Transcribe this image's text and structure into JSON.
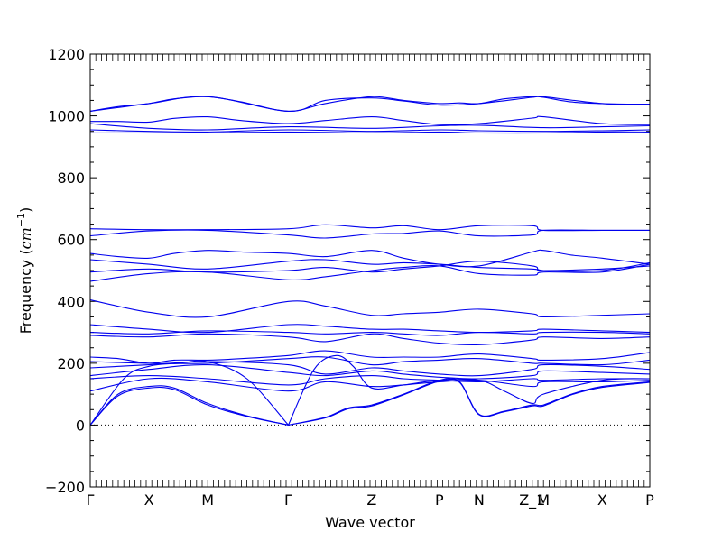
{
  "chart_data": {
    "type": "line",
    "title": "",
    "xlabel": "Wave vector",
    "ylabel_prefix": "Frequency (",
    "ylabel_math": "cm",
    "ylabel_exp": "−1",
    "ylabel_suffix": ")",
    "ylim": [
      -200,
      1200
    ],
    "yticks": [
      -200,
      0,
      200,
      400,
      600,
      800,
      1000,
      1200
    ],
    "ytick_labels": [
      "−200",
      "0",
      "200",
      "400",
      "600",
      "800",
      "1000",
      "1200"
    ],
    "x_points": [
      {
        "label": "Γ",
        "x": 0.0
      },
      {
        "label": "X",
        "x": 0.105
      },
      {
        "label": "M",
        "x": 0.21
      },
      {
        "label": "Γ",
        "x": 0.354
      },
      {
        "label": "Z",
        "x": 0.503
      },
      {
        "label": "P",
        "x": 0.624
      },
      {
        "label": "N",
        "x": 0.695
      },
      {
        "label": "Z_1",
        "x": 0.79
      },
      {
        "label": "M",
        "x": 0.81
      },
      {
        "label": "X",
        "x": 0.915
      },
      {
        "label": "P",
        "x": 1.0
      }
    ],
    "zero_line": 0,
    "grid": false,
    "series_color": "#0000ee",
    "series": [
      {
        "x": [
          0,
          0.05,
          0.105,
          0.15,
          0.21,
          0.27,
          0.354,
          0.42,
          0.503,
          0.56,
          0.624,
          0.66,
          0.695,
          0.74,
          0.79,
          0.81,
          0.86,
          0.915,
          0.96,
          1.0
        ],
        "y": [
          1015,
          1030,
          1040,
          1055,
          1062,
          1045,
          1015,
          1040,
          1062,
          1050,
          1040,
          1042,
          1040,
          1055,
          1062,
          1060,
          1045,
          1040,
          1038,
          1038
        ]
      },
      {
        "x": [
          0,
          0.105,
          0.21,
          0.354,
          0.42,
          0.503,
          0.56,
          0.624,
          0.695,
          0.79,
          0.81,
          0.915,
          1.0
        ],
        "y": [
          1015,
          1040,
          1062,
          1015,
          1050,
          1058,
          1048,
          1035,
          1040,
          1060,
          1062,
          1040,
          1038
        ]
      },
      {
        "x": [
          0,
          0.05,
          0.105,
          0.15,
          0.21,
          0.27,
          0.354,
          0.42,
          0.503,
          0.56,
          0.624,
          0.695,
          0.79,
          0.81,
          0.915,
          1.0
        ],
        "y": [
          982,
          982,
          980,
          992,
          997,
          985,
          975,
          985,
          997,
          985,
          972,
          975,
          993,
          997,
          975,
          972
        ]
      },
      {
        "x": [
          0,
          0.105,
          0.21,
          0.354,
          0.503,
          0.624,
          0.695,
          0.81,
          0.915,
          1.0
        ],
        "y": [
          975,
          960,
          955,
          965,
          960,
          968,
          970,
          962,
          965,
          968
        ]
      },
      {
        "x": [
          0,
          0.105,
          0.21,
          0.354,
          0.503,
          0.624,
          0.695,
          0.81,
          0.915,
          1.0
        ],
        "y": [
          955,
          950,
          948,
          955,
          950,
          955,
          952,
          950,
          952,
          955
        ]
      },
      {
        "x": [
          0,
          0.105,
          0.21,
          0.354,
          0.503,
          0.624,
          0.695,
          0.81,
          0.915,
          1.0
        ],
        "y": [
          945,
          945,
          945,
          948,
          945,
          948,
          945,
          945,
          948,
          948
        ]
      },
      {
        "x": [
          0,
          0.105,
          0.21,
          0.354,
          0.42,
          0.503,
          0.56,
          0.624,
          0.695,
          0.79,
          0.81,
          0.915,
          1.0
        ],
        "y": [
          635,
          632,
          632,
          635,
          648,
          638,
          645,
          632,
          645,
          645,
          630,
          630,
          630
        ]
      },
      {
        "x": [
          0,
          0.105,
          0.21,
          0.354,
          0.42,
          0.503,
          0.56,
          0.624,
          0.695,
          0.79,
          0.81,
          0.915,
          1.0
        ],
        "y": [
          612,
          628,
          630,
          615,
          605,
          618,
          620,
          628,
          612,
          615,
          630,
          630,
          630
        ]
      },
      {
        "x": [
          0,
          0.05,
          0.105,
          0.15,
          0.21,
          0.27,
          0.354,
          0.42,
          0.503,
          0.56,
          0.624,
          0.695,
          0.79,
          0.81,
          0.86,
          0.915,
          1.0
        ],
        "y": [
          555,
          545,
          540,
          555,
          565,
          560,
          555,
          545,
          565,
          540,
          520,
          515,
          560,
          565,
          550,
          540,
          520
        ]
      },
      {
        "x": [
          0,
          0.105,
          0.21,
          0.354,
          0.42,
          0.503,
          0.56,
          0.624,
          0.695,
          0.79,
          0.81,
          0.915,
          1.0
        ],
        "y": [
          535,
          520,
          505,
          530,
          535,
          520,
          525,
          520,
          510,
          505,
          500,
          505,
          515
        ]
      },
      {
        "x": [
          0,
          0.105,
          0.21,
          0.354,
          0.42,
          0.503,
          0.56,
          0.624,
          0.695,
          0.79,
          0.81,
          0.915,
          1.0
        ],
        "y": [
          495,
          505,
          495,
          500,
          510,
          495,
          505,
          515,
          530,
          515,
          500,
          500,
          525
        ]
      },
      {
        "x": [
          0,
          0.105,
          0.21,
          0.354,
          0.42,
          0.503,
          0.56,
          0.624,
          0.695,
          0.79,
          0.81,
          0.915,
          1.0
        ],
        "y": [
          465,
          490,
          495,
          470,
          480,
          500,
          510,
          515,
          490,
          485,
          495,
          495,
          520
        ]
      },
      {
        "x": [
          0,
          0.105,
          0.21,
          0.354,
          0.42,
          0.503,
          0.56,
          0.624,
          0.695,
          0.79,
          0.81,
          0.915,
          1.0
        ],
        "y": [
          405,
          365,
          350,
          400,
          385,
          355,
          360,
          365,
          375,
          360,
          350,
          355,
          360
        ]
      },
      {
        "x": [
          0,
          0.105,
          0.21,
          0.354,
          0.42,
          0.503,
          0.56,
          0.624,
          0.695,
          0.79,
          0.81,
          0.915,
          1.0
        ],
        "y": [
          325,
          310,
          300,
          325,
          320,
          310,
          310,
          305,
          300,
          305,
          310,
          305,
          300
        ]
      },
      {
        "x": [
          0,
          0.105,
          0.21,
          0.354,
          0.42,
          0.503,
          0.56,
          0.624,
          0.695,
          0.79,
          0.81,
          0.915,
          1.0
        ],
        "y": [
          300,
          295,
          305,
          300,
          295,
          300,
          295,
          290,
          300,
          295,
          300,
          300,
          295
        ]
      },
      {
        "x": [
          0,
          0.105,
          0.21,
          0.354,
          0.42,
          0.503,
          0.56,
          0.624,
          0.695,
          0.79,
          0.81,
          0.915,
          1.0
        ],
        "y": [
          290,
          285,
          295,
          285,
          270,
          295,
          280,
          265,
          260,
          275,
          285,
          280,
          285
        ]
      },
      {
        "x": [
          0,
          0.05,
          0.105,
          0.15,
          0.21,
          0.27,
          0.354,
          0.42,
          0.503,
          0.56,
          0.624,
          0.695,
          0.79,
          0.81,
          0.915,
          1.0
        ],
        "y": [
          220,
          215,
          200,
          210,
          210,
          215,
          225,
          240,
          220,
          220,
          220,
          230,
          215,
          210,
          215,
          235
        ]
      },
      {
        "x": [
          0,
          0.105,
          0.21,
          0.354,
          0.42,
          0.503,
          0.56,
          0.624,
          0.695,
          0.79,
          0.81,
          0.915,
          1.0
        ],
        "y": [
          205,
          200,
          200,
          215,
          220,
          195,
          205,
          210,
          215,
          200,
          200,
          195,
          210
        ]
      },
      {
        "x": [
          0,
          0.105,
          0.21,
          0.354,
          0.42,
          0.503,
          0.56,
          0.624,
          0.695,
          0.79,
          0.81,
          0.915,
          1.0
        ],
        "y": [
          185,
          195,
          205,
          195,
          165,
          185,
          175,
          165,
          160,
          180,
          195,
          190,
          180
        ]
      },
      {
        "x": [
          0,
          0.105,
          0.21,
          0.354,
          0.42,
          0.503,
          0.56,
          0.624,
          0.695,
          0.79,
          0.81,
          0.915,
          1.0
        ],
        "y": [
          160,
          180,
          195,
          170,
          160,
          175,
          165,
          155,
          150,
          160,
          175,
          170,
          165
        ]
      },
      {
        "x": [
          0,
          0.105,
          0.21,
          0.354,
          0.42,
          0.503,
          0.56,
          0.624,
          0.695,
          0.79,
          0.81,
          0.915,
          1.0
        ],
        "y": [
          150,
          160,
          150,
          130,
          150,
          160,
          150,
          145,
          140,
          150,
          145,
          150,
          150
        ]
      },
      {
        "x": [
          0,
          0.105,
          0.21,
          0.354,
          0.42,
          0.503,
          0.56,
          0.624,
          0.695,
          0.79,
          0.81,
          0.915,
          1.0
        ],
        "y": [
          110,
          150,
          140,
          110,
          140,
          125,
          130,
          140,
          145,
          125,
          140,
          140,
          145
        ]
      },
      {
        "x": [
          0,
          0.05,
          0.105,
          0.15,
          0.21,
          0.28,
          0.354
        ],
        "y": [
          0,
          100,
          125,
          120,
          70,
          30,
          0
        ]
      },
      {
        "x": [
          0,
          0.05,
          0.105,
          0.15,
          0.21,
          0.28,
          0.354
        ],
        "y": [
          0,
          95,
          120,
          115,
          65,
          28,
          0
        ]
      },
      {
        "x": [
          0,
          0.06,
          0.105,
          0.16,
          0.21,
          0.28,
          0.354
        ],
        "y": [
          0,
          150,
          190,
          200,
          205,
          150,
          0
        ]
      },
      {
        "x": [
          0.354,
          0.42,
          0.46,
          0.503,
          0.56,
          0.624,
          0.66,
          0.695,
          0.74,
          0.79,
          0.81,
          0.86,
          0.915,
          1.0
        ],
        "y": [
          0,
          25,
          55,
          65,
          100,
          145,
          140,
          35,
          45,
          65,
          65,
          100,
          125,
          140
        ]
      },
      {
        "x": [
          0.354,
          0.42,
          0.46,
          0.503,
          0.56,
          0.624,
          0.66,
          0.695,
          0.74,
          0.79,
          0.81,
          0.86,
          0.915,
          1.0
        ],
        "y": [
          0,
          23,
          52,
          62,
          98,
          142,
          138,
          33,
          43,
          62,
          62,
          98,
          122,
          138
        ]
      },
      {
        "x": [
          0.354,
          0.4,
          0.44,
          0.47,
          0.503,
          0.56,
          0.624,
          0.695,
          0.74,
          0.79,
          0.81,
          0.915,
          1.0
        ],
        "y": [
          0,
          180,
          225,
          190,
          120,
          130,
          145,
          145,
          110,
          70,
          100,
          145,
          150
        ]
      }
    ]
  }
}
